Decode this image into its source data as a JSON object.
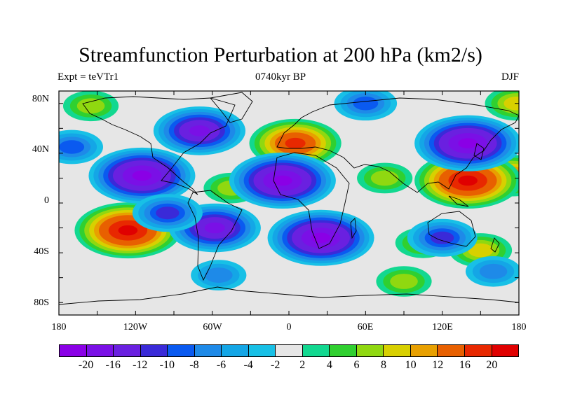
{
  "title": "Streamfunction Perturbation at 200 hPa (km2/s)",
  "subtitle_left": "Expt = teVTr1",
  "subtitle_center": "0740kyr BP",
  "subtitle_right": "DJF",
  "map": {
    "lon_range": [
      -180,
      180
    ],
    "lat_range": [
      -90,
      90
    ],
    "y_ticks": [
      "80N",
      "40N",
      "0",
      "40S",
      "80S"
    ],
    "x_ticks": [
      "180",
      "120W",
      "60W",
      "0",
      "60E",
      "120E",
      "180"
    ],
    "anomalies": [
      {
        "name": "north-pacific-high",
        "lon": 175,
        "lat": 22,
        "value": 12
      },
      {
        "name": "south-pacific-high",
        "lon": -126,
        "lat": -22,
        "value": 20
      },
      {
        "name": "north-atlantic-europe-high",
        "lon": 5,
        "lat": 48,
        "value": 16
      },
      {
        "name": "east-asia-high",
        "lon": 140,
        "lat": 18,
        "value": 20
      },
      {
        "name": "arctic-north-pacific-high",
        "lon": -155,
        "lat": 78,
        "value": 6
      },
      {
        "name": "north-asia-high",
        "lon": 178,
        "lat": 80,
        "value": 8
      },
      {
        "name": "atlantic-subtropical-high",
        "lon": -45,
        "lat": 12,
        "value": 6
      },
      {
        "name": "indian-ocean-high",
        "lon": 75,
        "lat": 20,
        "value": 6
      },
      {
        "name": "south-indian-high",
        "lon": 105,
        "lat": -32,
        "value": 6
      },
      {
        "name": "southern-ocean-high",
        "lon": 90,
        "lat": -63,
        "value": 6
      },
      {
        "name": "australia-east-high",
        "lon": 150,
        "lat": -38,
        "value": 8
      },
      {
        "name": "central-pacific-low",
        "lon": -115,
        "lat": 22,
        "value": -20
      },
      {
        "name": "north-america-low",
        "lon": -70,
        "lat": 58,
        "value": -16
      },
      {
        "name": "central-atlantic-low",
        "lon": -5,
        "lat": 18,
        "value": -20
      },
      {
        "name": "south-africa-low",
        "lon": 25,
        "lat": -28,
        "value": -20
      },
      {
        "name": "south-america-low",
        "lon": -58,
        "lat": -20,
        "value": -16
      },
      {
        "name": "east-pacific-low",
        "lon": -95,
        "lat": -8,
        "value": -10
      },
      {
        "name": "siberia-low",
        "lon": 140,
        "lat": 48,
        "value": -20
      },
      {
        "name": "arctic-russia-low",
        "lon": 60,
        "lat": 80,
        "value": -8
      },
      {
        "name": "north-pacific-west-low",
        "lon": -170,
        "lat": 45,
        "value": -8
      },
      {
        "name": "southern-ocean-low",
        "lon": -55,
        "lat": -58,
        "value": -6
      },
      {
        "name": "australia-low",
        "lon": 120,
        "lat": -28,
        "value": -10
      },
      {
        "name": "southwest-pacific-low",
        "lon": 160,
        "lat": -55,
        "value": -6
      }
    ]
  },
  "colorbar": {
    "colors": [
      "#8a00e6",
      "#7a10e6",
      "#6a20e0",
      "#3a2ad8",
      "#0a5af0",
      "#1e8ae8",
      "#14a6e6",
      "#18c0e6",
      "#e6e6e6",
      "#12d890",
      "#30d030",
      "#90d810",
      "#d8d000",
      "#e8a000",
      "#e86000",
      "#e82800",
      "#e00000"
    ],
    "labels": [
      "-20",
      "-16",
      "-12",
      "-10",
      "-8",
      "-6",
      "-4",
      "-2",
      "2",
      "4",
      "6",
      "8",
      "10",
      "12",
      "16",
      "20"
    ],
    "levels": [
      -24,
      -20,
      -16,
      -12,
      -10,
      -8,
      -6,
      -4,
      -2,
      2,
      4,
      6,
      8,
      10,
      12,
      16,
      20,
      24
    ]
  }
}
